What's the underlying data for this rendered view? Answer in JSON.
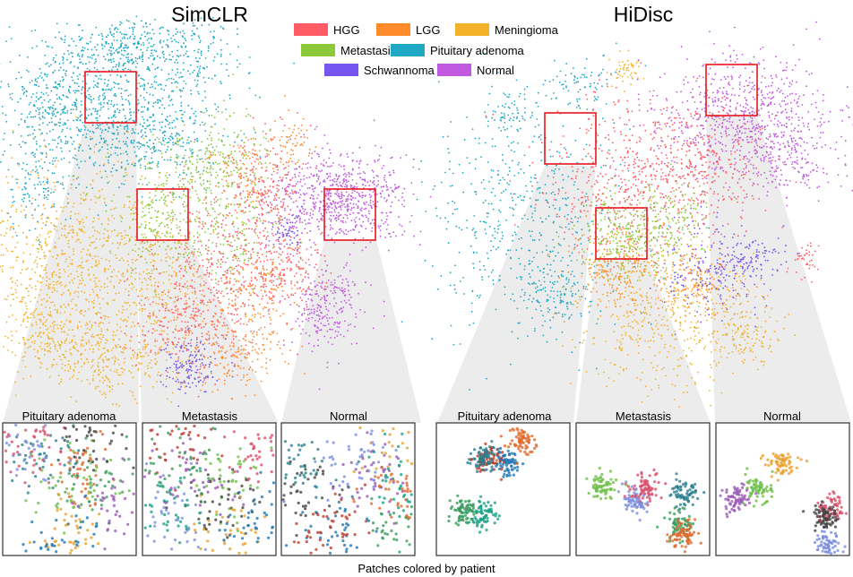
{
  "chart_data": {
    "type": "scatter",
    "caption": "Patches colored by patient",
    "legend": {
      "placement": "top-center",
      "entries": [
        {
          "name": "HGG",
          "color": "#ff5c66"
        },
        {
          "name": "LGG",
          "color": "#ff8a2a"
        },
        {
          "name": "Meningioma",
          "color": "#f4b12a"
        },
        {
          "name": "Metastasis",
          "color": "#8cc83a"
        },
        {
          "name": "Pituitary adenoma",
          "color": "#20a9c4"
        },
        {
          "name": "Schwannoma",
          "color": "#7656ee"
        },
        {
          "name": "Normal",
          "color": "#c158e0"
        }
      ]
    },
    "panels": [
      {
        "title": "SimCLR",
        "zooms": [
          {
            "title": "Pituitary adenoma"
          },
          {
            "title": "Metastasis"
          },
          {
            "title": "Normal"
          }
        ]
      },
      {
        "title": "HiDisc",
        "zooms": [
          {
            "title": "Pituitary adenoma"
          },
          {
            "title": "Metastasis"
          },
          {
            "title": "Normal"
          }
        ]
      }
    ]
  }
}
